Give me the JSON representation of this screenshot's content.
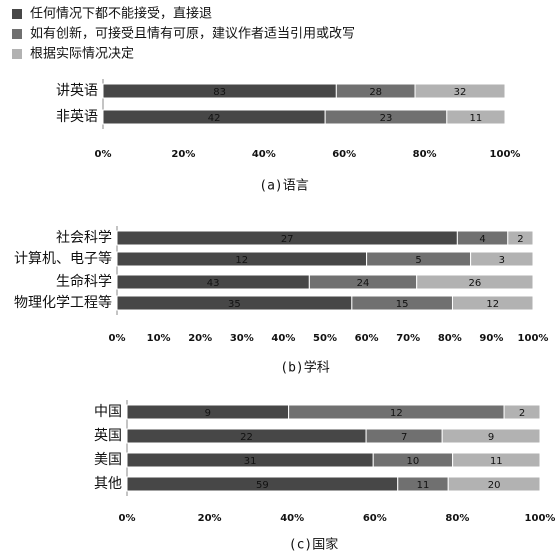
{
  "chart_data": [
    {
      "type": "bar",
      "orientation": "horizontal",
      "stacking": "percent",
      "title": "(a)语言",
      "categories": [
        "讲英语",
        "非英语"
      ],
      "series": [
        {
          "name": "任何情况下都不能接受，直接退",
          "color": "#474747",
          "values": [
            83,
            42
          ]
        },
        {
          "name": "如有创新，可接受且情有可原，建议作者适当引用或改写",
          "color": "#707070",
          "values": [
            28,
            23
          ]
        },
        {
          "name": "根据实际情况决定",
          "color": "#b2b2b2",
          "values": [
            32,
            11
          ]
        }
      ],
      "xlim": [
        0,
        100
      ],
      "xticks": [
        {
          "value": 0,
          "label": "0%"
        },
        {
          "value": 20,
          "label": "20%"
        },
        {
          "value": 40,
          "label": "40%"
        },
        {
          "value": 60,
          "label": "60%"
        },
        {
          "value": 80,
          "label": "80%"
        },
        {
          "value": 100,
          "label": "100%"
        }
      ]
    },
    {
      "type": "bar",
      "orientation": "horizontal",
      "stacking": "percent",
      "title": "(b)学科",
      "categories": [
        "社会科学",
        "计算机、电子等",
        "生命科学",
        "物理化学工程等"
      ],
      "series": [
        {
          "color": "#474747",
          "values": [
            27,
            12,
            43,
            35
          ]
        },
        {
          "color": "#707070",
          "values": [
            4,
            5,
            24,
            15
          ]
        },
        {
          "color": "#b2b2b2",
          "values": [
            2,
            3,
            26,
            12
          ]
        }
      ],
      "xlim": [
        0,
        100
      ],
      "xticks": [
        {
          "value": 0,
          "label": "0%"
        },
        {
          "value": 10,
          "label": "10%"
        },
        {
          "value": 20,
          "label": "20%"
        },
        {
          "value": 30,
          "label": "30%"
        },
        {
          "value": 40,
          "label": "40%"
        },
        {
          "value": 50,
          "label": "50%"
        },
        {
          "value": 60,
          "label": "60%"
        },
        {
          "value": 70,
          "label": "70%"
        },
        {
          "value": 80,
          "label": "80%"
        },
        {
          "value": 90,
          "label": "90%"
        },
        {
          "value": 100,
          "label": "100%"
        }
      ]
    },
    {
      "type": "bar",
      "orientation": "horizontal",
      "stacking": "percent",
      "title": "(c)国家",
      "categories": [
        "中国",
        "英国",
        "美国",
        "其他"
      ],
      "series": [
        {
          "color": "#474747",
          "values": [
            9,
            22,
            31,
            59
          ]
        },
        {
          "color": "#707070",
          "values": [
            12,
            7,
            10,
            11
          ]
        },
        {
          "color": "#b2b2b2",
          "values": [
            2,
            9,
            11,
            20
          ]
        }
      ],
      "xlim": [
        0,
        100
      ],
      "xticks": [
        {
          "value": 0,
          "label": "0%"
        },
        {
          "value": 20,
          "label": "20%"
        },
        {
          "value": 40,
          "label": "40%"
        },
        {
          "value": 60,
          "label": "60%"
        },
        {
          "value": 80,
          "label": "80%"
        },
        {
          "value": 100,
          "label": "100%"
        }
      ]
    }
  ]
}
